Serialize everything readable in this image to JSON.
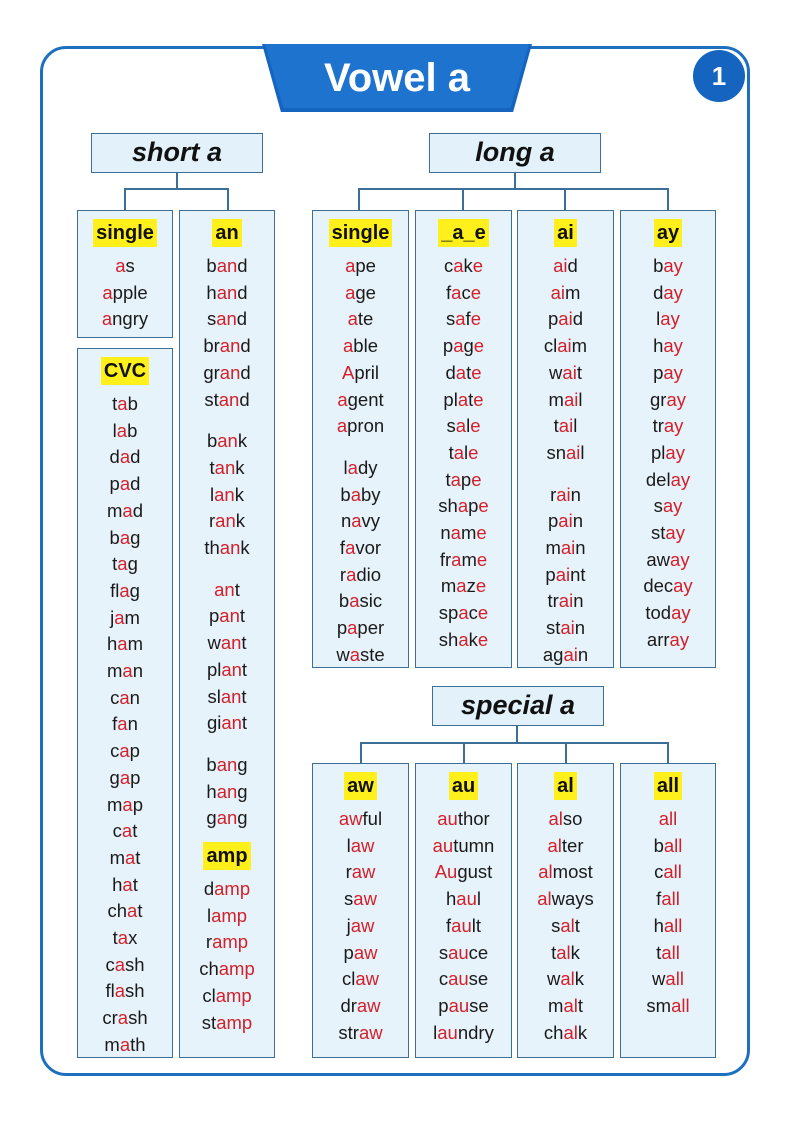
{
  "title": "Vowel a",
  "page_number": "1",
  "colors": {
    "accent": "#1e73cf",
    "highlight": "#ffef1a",
    "red": "#d3202a",
    "panel": "#e6f3fb"
  },
  "categories": {
    "short": "short a",
    "long": "long a",
    "special": "special a"
  },
  "columns": [
    {
      "id": "short-single",
      "header": "single",
      "groups": [
        [
          [
            "",
            "a",
            "s"
          ],
          [
            "",
            "a",
            "pple"
          ],
          [
            "",
            "a",
            "ngry"
          ]
        ]
      ]
    },
    {
      "id": "short-cvc",
      "header": "CVC",
      "groups": [
        [
          [
            "t",
            "a",
            "b"
          ],
          [
            "l",
            "a",
            "b"
          ],
          [
            "d",
            "a",
            "d"
          ],
          [
            "p",
            "a",
            "d"
          ],
          [
            "m",
            "a",
            "d"
          ],
          [
            "b",
            "a",
            "g"
          ],
          [
            "t",
            "a",
            "g"
          ],
          [
            "fl",
            "a",
            "g"
          ],
          [
            "j",
            "a",
            "m"
          ],
          [
            "h",
            "a",
            "m"
          ],
          [
            "m",
            "a",
            "n"
          ],
          [
            "c",
            "a",
            "n"
          ],
          [
            "f",
            "a",
            "n"
          ],
          [
            "c",
            "a",
            "p"
          ],
          [
            "g",
            "a",
            "p"
          ],
          [
            "m",
            "a",
            "p"
          ],
          [
            "c",
            "a",
            "t"
          ],
          [
            "m",
            "a",
            "t"
          ],
          [
            "h",
            "a",
            "t"
          ],
          [
            "ch",
            "a",
            "t"
          ],
          [
            "t",
            "a",
            "x"
          ],
          [
            "c",
            "a",
            "sh"
          ],
          [
            "fl",
            "a",
            "sh"
          ],
          [
            "cr",
            "a",
            "sh"
          ],
          [
            "m",
            "a",
            "th"
          ]
        ]
      ]
    },
    {
      "id": "short-an",
      "header": "an",
      "groups": [
        [
          [
            "b",
            "an",
            "d"
          ],
          [
            "h",
            "an",
            "d"
          ],
          [
            "s",
            "an",
            "d"
          ],
          [
            "br",
            "an",
            "d"
          ],
          [
            "gr",
            "an",
            "d"
          ],
          [
            "st",
            "an",
            "d"
          ]
        ],
        [
          [
            "b",
            "an",
            "k"
          ],
          [
            "t",
            "an",
            "k"
          ],
          [
            "l",
            "an",
            "k"
          ],
          [
            "r",
            "an",
            "k"
          ],
          [
            "th",
            "an",
            "k"
          ]
        ],
        [
          [
            "",
            "an",
            "t"
          ],
          [
            "p",
            "an",
            "t"
          ],
          [
            "w",
            "an",
            "t"
          ],
          [
            "pl",
            "an",
            "t"
          ],
          [
            "sl",
            "an",
            "t"
          ],
          [
            "gi",
            "an",
            "t"
          ]
        ],
        [
          [
            "b",
            "an",
            "g"
          ],
          [
            "h",
            "an",
            "g"
          ],
          [
            "g",
            "an",
            "g"
          ]
        ]
      ],
      "sub_header": "amp",
      "sub_groups": [
        [
          [
            "d",
            "amp"
          ],
          [
            "l",
            "amp"
          ],
          [
            "r",
            "amp"
          ],
          [
            "ch",
            "amp"
          ],
          [
            "cl",
            "amp"
          ],
          [
            "st",
            "amp"
          ]
        ]
      ]
    },
    {
      "id": "long-single",
      "header": "single",
      "groups": [
        [
          [
            "",
            "a",
            "pe"
          ],
          [
            "",
            "a",
            "ge"
          ],
          [
            "",
            "a",
            "te"
          ],
          [
            "",
            "a",
            "ble"
          ],
          [
            "",
            "A",
            "pril"
          ],
          [
            "",
            "a",
            "gent"
          ],
          [
            "",
            "a",
            "pron"
          ]
        ],
        [
          [
            "l",
            "a",
            "dy"
          ],
          [
            "b",
            "a",
            "by"
          ],
          [
            "n",
            "a",
            "vy"
          ],
          [
            "f",
            "a",
            "vor"
          ],
          [
            "r",
            "a",
            "dio"
          ],
          [
            "b",
            "a",
            "sic"
          ],
          [
            "p",
            "a",
            "per"
          ],
          [
            "w",
            "a",
            "ste"
          ]
        ]
      ]
    },
    {
      "id": "long-a-e",
      "header": "_a_e",
      "groups": [
        [
          [
            "c",
            "a",
            "k",
            "e"
          ],
          [
            "f",
            "a",
            "c",
            "e"
          ],
          [
            "s",
            "a",
            "f",
            "e"
          ],
          [
            "p",
            "a",
            "g",
            "e"
          ],
          [
            "d",
            "a",
            "t",
            "e"
          ],
          [
            "pl",
            "a",
            "t",
            "e"
          ],
          [
            "s",
            "a",
            "l",
            "e"
          ],
          [
            "t",
            "a",
            "l",
            "e"
          ],
          [
            "t",
            "a",
            "p",
            "e"
          ],
          [
            "sh",
            "a",
            "p",
            "e"
          ],
          [
            "n",
            "a",
            "m",
            "e"
          ],
          [
            "fr",
            "a",
            "m",
            "e"
          ],
          [
            "m",
            "a",
            "z",
            "e"
          ],
          [
            "sp",
            "a",
            "c",
            "e"
          ],
          [
            "sh",
            "a",
            "k",
            "e"
          ]
        ]
      ]
    },
    {
      "id": "long-ai",
      "header": "ai",
      "groups": [
        [
          [
            "",
            "ai",
            "d"
          ],
          [
            "",
            "ai",
            "m"
          ],
          [
            "p",
            "ai",
            "d"
          ],
          [
            "cl",
            "ai",
            "m"
          ],
          [
            "w",
            "ai",
            "t"
          ],
          [
            "m",
            "ai",
            "l"
          ],
          [
            "t",
            "ai",
            "l"
          ],
          [
            "sn",
            "ai",
            "l"
          ]
        ],
        [
          [
            "r",
            "ai",
            "n"
          ],
          [
            "p",
            "ai",
            "n"
          ],
          [
            "m",
            "ai",
            "n"
          ],
          [
            "p",
            "ai",
            "nt"
          ],
          [
            "tr",
            "ai",
            "n"
          ],
          [
            "st",
            "ai",
            "n"
          ],
          [
            "ag",
            "ai",
            "n"
          ]
        ]
      ]
    },
    {
      "id": "long-ay",
      "header": "ay",
      "groups": [
        [
          [
            "b",
            "ay"
          ],
          [
            "d",
            "ay"
          ],
          [
            "l",
            "ay"
          ],
          [
            "h",
            "ay"
          ],
          [
            "p",
            "ay"
          ],
          [
            "gr",
            "ay"
          ],
          [
            "tr",
            "ay"
          ],
          [
            "pl",
            "ay"
          ],
          [
            "del",
            "ay"
          ],
          [
            "s",
            "ay"
          ],
          [
            "st",
            "ay"
          ],
          [
            "aw",
            "ay"
          ],
          [
            "dec",
            "ay"
          ],
          [
            "tod",
            "ay"
          ],
          [
            "arr",
            "ay"
          ]
        ]
      ]
    },
    {
      "id": "special-aw",
      "header": "aw",
      "groups": [
        [
          [
            "",
            "aw",
            "ful"
          ],
          [
            "l",
            "aw"
          ],
          [
            "r",
            "aw"
          ],
          [
            "s",
            "aw"
          ],
          [
            "j",
            "aw"
          ],
          [
            "p",
            "aw"
          ],
          [
            "cl",
            "aw"
          ],
          [
            "dr",
            "aw"
          ],
          [
            "str",
            "aw"
          ]
        ]
      ]
    },
    {
      "id": "special-au",
      "header": "au",
      "groups": [
        [
          [
            "",
            "au",
            "thor"
          ],
          [
            "",
            "au",
            "tumn"
          ],
          [
            "",
            "Au",
            "gust"
          ],
          [
            "h",
            "au",
            "l"
          ],
          [
            "f",
            "au",
            "lt"
          ],
          [
            "s",
            "au",
            "ce"
          ],
          [
            "c",
            "au",
            "se"
          ],
          [
            "p",
            "au",
            "se"
          ],
          [
            "l",
            "au",
            "ndry"
          ]
        ]
      ]
    },
    {
      "id": "special-al",
      "header": "al",
      "groups": [
        [
          [
            "",
            "al",
            "so"
          ],
          [
            "",
            "al",
            "ter"
          ],
          [
            "",
            "al",
            "most"
          ],
          [
            "",
            "al",
            "ways"
          ],
          [
            "s",
            "al",
            "t"
          ],
          [
            "t",
            "al",
            "k"
          ],
          [
            "w",
            "al",
            "k"
          ],
          [
            "m",
            "al",
            "t"
          ],
          [
            "ch",
            "al",
            "k"
          ]
        ]
      ]
    },
    {
      "id": "special-all",
      "header": "all",
      "groups": [
        [
          [
            "",
            "all"
          ],
          [
            "b",
            "all"
          ],
          [
            "c",
            "all"
          ],
          [
            "f",
            "all"
          ],
          [
            "h",
            "all"
          ],
          [
            "t",
            "all"
          ],
          [
            "w",
            "all"
          ],
          [
            "sm",
            "all"
          ]
        ]
      ]
    }
  ]
}
